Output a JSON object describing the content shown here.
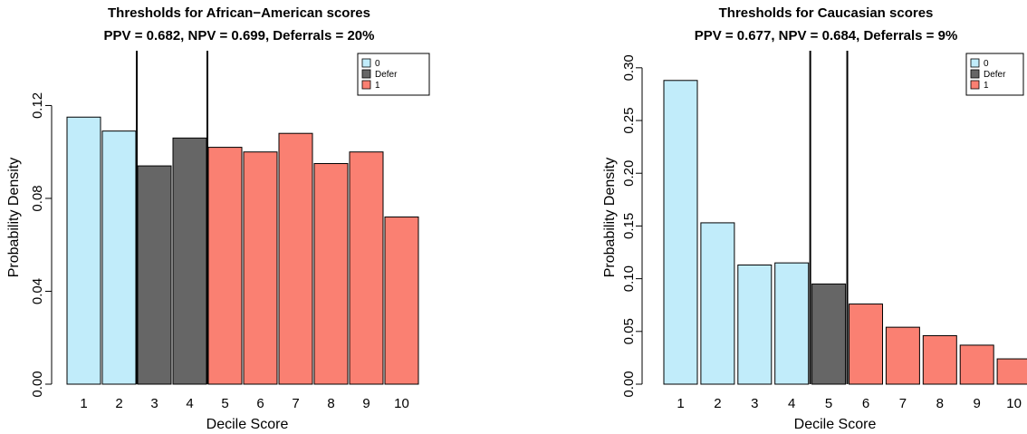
{
  "colors": {
    "0": "#c1ecfa",
    "Defer": "#666666",
    "1": "#fa8072"
  },
  "chart_data": [
    {
      "type": "bar",
      "title": "Thresholds for African−American scores",
      "subtitle": "PPV = 0.682, NPV = 0.699,  Deferrals = 20%",
      "xlabel": "Decile Score",
      "ylabel": "Probability Density",
      "categories": [
        "1",
        "2",
        "3",
        "4",
        "5",
        "6",
        "7",
        "8",
        "9",
        "10"
      ],
      "values": [
        0.115,
        0.109,
        0.094,
        0.106,
        0.102,
        0.1,
        0.108,
        0.095,
        0.1,
        0.072
      ],
      "groups": [
        "0",
        "0",
        "Defer",
        "Defer",
        "1",
        "1",
        "1",
        "1",
        "1",
        "1"
      ],
      "thresholds": [
        2.5,
        4.5
      ],
      "ylim": [
        0,
        0.135
      ],
      "yticks": [
        0.0,
        0.04,
        0.08,
        0.12
      ],
      "ytick_labels": [
        "0.00",
        "0.04",
        "0.08",
        "0.12"
      ],
      "legend": {
        "position": "top-right",
        "entries": [
          "0",
          "Defer",
          "1"
        ]
      }
    },
    {
      "type": "bar",
      "title": "Thresholds for Caucasian scores",
      "subtitle": "PPV = 0.677, NPV = 0.684,  Deferrals = 9%",
      "xlabel": "Decile Score",
      "ylabel": "Probability Density",
      "categories": [
        "1",
        "2",
        "3",
        "4",
        "5",
        "6",
        "7",
        "8",
        "9",
        "10"
      ],
      "values": [
        0.288,
        0.153,
        0.113,
        0.115,
        0.095,
        0.076,
        0.054,
        0.046,
        0.037,
        0.024
      ],
      "groups": [
        "0",
        "0",
        "0",
        "0",
        "Defer",
        "1",
        "1",
        "1",
        "1",
        "1"
      ],
      "thresholds": [
        4.5,
        5.5
      ],
      "ylim": [
        0,
        0.305
      ],
      "yticks": [
        0.0,
        0.05,
        0.1,
        0.15,
        0.2,
        0.25,
        0.3
      ],
      "ytick_labels": [
        "0.00",
        "0.05",
        "0.10",
        "0.15",
        "0.20",
        "0.25",
        "0.30"
      ],
      "legend": {
        "position": "top-right",
        "entries": [
          "0",
          "Defer",
          "1"
        ]
      }
    }
  ]
}
